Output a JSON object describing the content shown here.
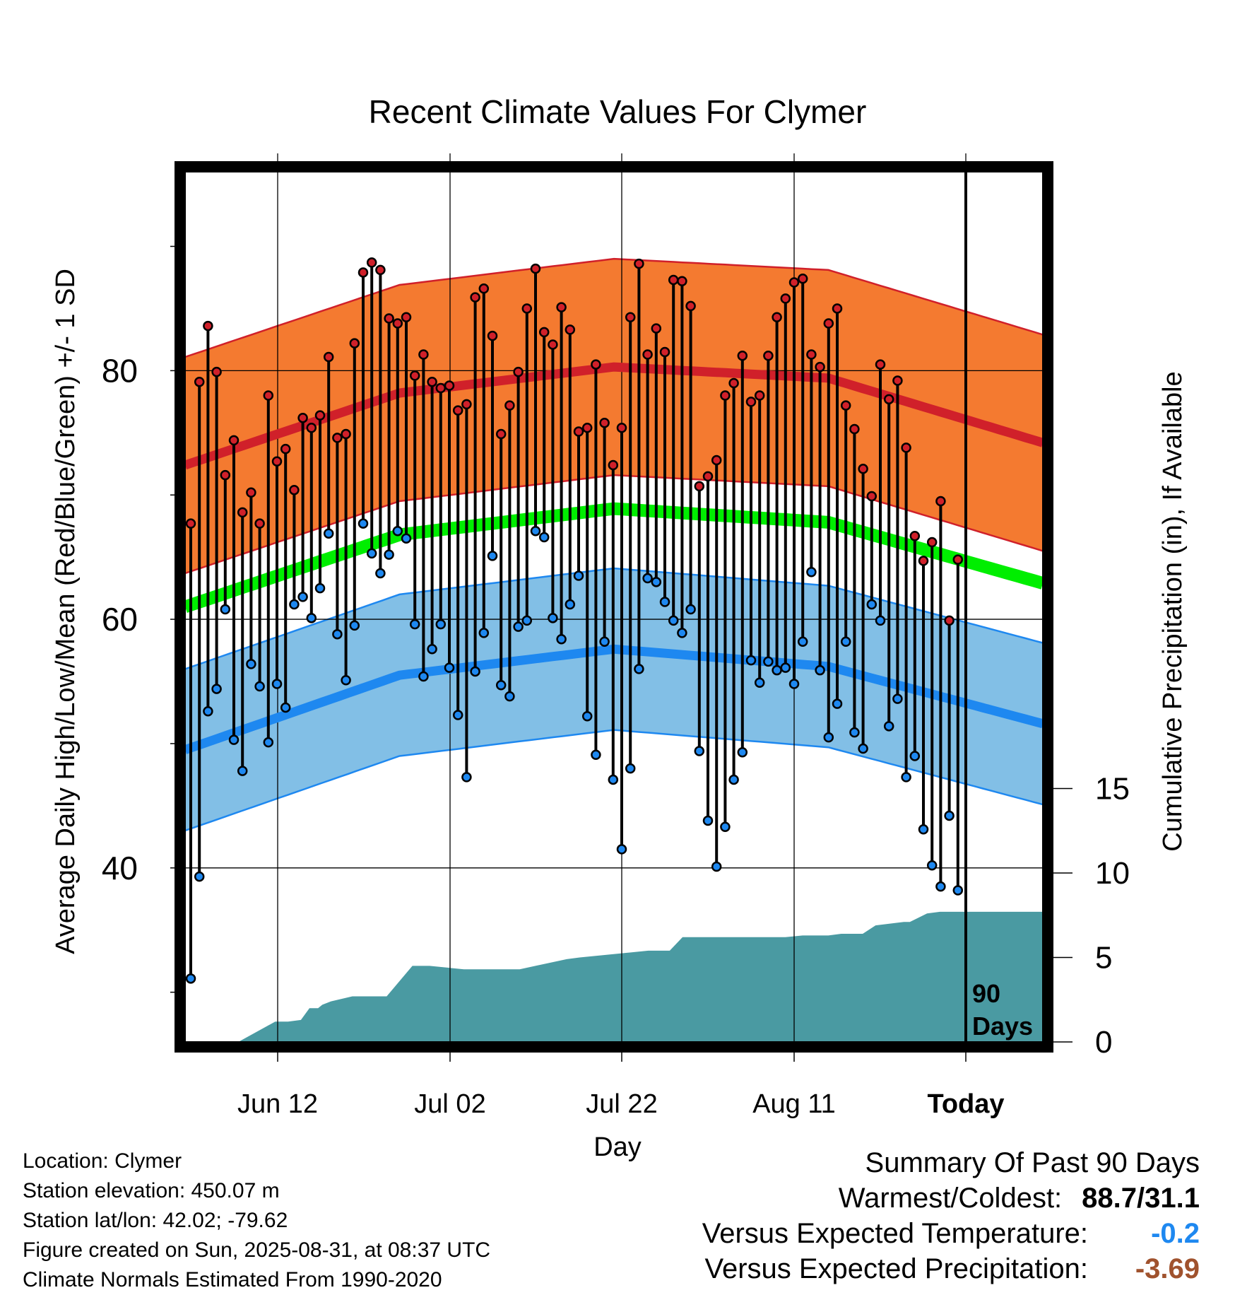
{
  "chart_data": {
    "type": "line",
    "title": "Recent Climate Values For Clymer",
    "xlabel": "Day",
    "ylabel": "Average Daily High/Low/Mean (Red/Blue/Green) +/- 1 SD",
    "y2label": "Cumulative Precipitation (in), If Available",
    "x_tick_labels": [
      "Jun 12",
      "Jul 02",
      "Jul 22",
      "Aug 11",
      "Today"
    ],
    "y_ticks": [
      40,
      60,
      80
    ],
    "y_ticks_minor": [
      30,
      50,
      70,
      90
    ],
    "ylim": [
      26,
      96
    ],
    "y2_ticks": [
      0,
      5,
      10,
      15
    ],
    "y2lim": [
      0,
      51.5
    ],
    "grid": true,
    "today_marker_label": "90 Days",
    "colors": {
      "high": "#d0202a",
      "high_band": "#f47a30",
      "low": "#1e88f0",
      "low_band": "#82bfe6",
      "mean": "#00ee00",
      "precip": "#4a9aa2",
      "frame": "#000000"
    },
    "series": [
      {
        "name": "Daily High",
        "values": [
          67.7,
          79.1,
          83.6,
          79.9,
          71.6,
          74.4,
          68.6,
          70.2,
          67.7,
          78.0,
          72.7,
          73.7,
          70.4,
          76.2,
          75.4,
          76.4,
          81.1,
          74.6,
          74.9,
          82.2,
          87.9,
          88.7,
          88.1,
          84.2,
          83.8,
          84.3,
          79.6,
          81.3,
          79.1,
          78.6,
          78.8,
          76.8,
          77.3,
          85.9,
          86.6,
          82.8,
          74.9,
          77.2,
          79.9,
          85.0,
          88.2,
          83.1,
          82.1,
          85.1,
          83.3,
          75.1,
          75.4,
          80.5,
          75.8,
          72.4,
          75.4,
          84.3,
          88.6,
          81.3,
          83.4,
          81.5,
          87.3,
          87.2,
          85.2,
          70.7,
          71.5,
          72.8,
          78.0,
          79.0,
          81.2,
          77.5,
          78.0,
          81.2,
          84.3,
          85.8,
          87.1,
          87.4,
          81.3,
          80.3,
          83.8,
          85.0,
          77.2,
          75.3,
          72.1,
          69.9,
          80.5,
          77.7,
          79.2,
          73.8,
          66.7,
          64.7,
          66.2,
          69.5,
          59.9,
          64.8
        ]
      },
      {
        "name": "Daily Low",
        "values": [
          31.1,
          39.3,
          52.6,
          54.4,
          60.8,
          50.3,
          47.8,
          56.4,
          54.6,
          50.1,
          54.8,
          52.9,
          61.2,
          61.8,
          60.1,
          62.5,
          66.9,
          58.8,
          55.1,
          59.5,
          67.7,
          65.3,
          63.7,
          65.2,
          67.1,
          66.5,
          59.6,
          55.4,
          57.6,
          59.6,
          56.1,
          52.3,
          47.3,
          55.8,
          58.9,
          65.1,
          54.7,
          53.8,
          59.4,
          59.9,
          67.1,
          66.6,
          60.1,
          58.4,
          61.2,
          63.5,
          52.2,
          49.1,
          58.2,
          47.1,
          41.5,
          48.0,
          56.0,
          63.3,
          63.0,
          61.4,
          59.9,
          58.9,
          60.8,
          49.4,
          43.8,
          40.1,
          43.3,
          47.1,
          49.3,
          56.7,
          54.9,
          56.6,
          55.9,
          56.1,
          54.8,
          58.2,
          63.8,
          55.9,
          50.5,
          53.2,
          58.2,
          50.9,
          49.6,
          61.2,
          59.9,
          51.4,
          53.6,
          47.3,
          49.0,
          43.1,
          40.2,
          38.5,
          44.2,
          38.2
        ]
      },
      {
        "name": "Normal High",
        "x_pos": [
          0,
          25,
          50,
          75,
          100
        ],
        "values": [
          72.4,
          78.2,
          80.3,
          79.4,
          74.2
        ],
        "sd": 8.7
      },
      {
        "name": "Normal Low",
        "x_pos": [
          0,
          25,
          50,
          75,
          100
        ],
        "values": [
          49.5,
          55.5,
          57.6,
          56.2,
          51.6
        ],
        "sd": 6.5
      },
      {
        "name": "Normal Mean",
        "x_pos": [
          0,
          25,
          50,
          75,
          100
        ],
        "values": [
          61.0,
          66.8,
          68.9,
          67.8,
          62.9
        ]
      },
      {
        "name": "Cumulative Precipitation",
        "axis": "y2",
        "x_pos": [
          0,
          6.2,
          10.5,
          11.5,
          12,
          13.5,
          14.5,
          15.5,
          16,
          17,
          19.5,
          20.5,
          22,
          23.5,
          26.5,
          28.5,
          32.5,
          39,
          44.5,
          46,
          54,
          56.5,
          58,
          60,
          64,
          70,
          72,
          75,
          76.5,
          79,
          80.5,
          83.8,
          84.5,
          86.5,
          88,
          88.8,
          100
        ],
        "values": [
          0,
          0,
          1.2,
          1.2,
          1.2,
          1.3,
          2.0,
          2.0,
          2.2,
          2.4,
          2.7,
          2.7,
          2.7,
          2.7,
          4.5,
          4.5,
          4.3,
          4.3,
          4.9,
          5.0,
          5.4,
          5.4,
          6.2,
          6.2,
          6.2,
          6.2,
          6.3,
          6.3,
          6.4,
          6.4,
          6.9,
          7.1,
          7.1,
          7.6,
          7.7,
          7.7,
          7.7
        ]
      }
    ],
    "precipitation": "cumulative"
  },
  "footer": {
    "location": "Location: Clymer",
    "elevation": "Station elevation: 450.07 m",
    "latlon": "Station lat/lon: 42.02; -79.62",
    "created": "Figure created on Sun, 2025-08-31, at 08:37 UTC",
    "normals": "Climate Normals Estimated From 1990-2020"
  },
  "summary": {
    "title": "Summary Of Past 90 Days",
    "warmest_label": "Warmest/Coldest:",
    "warmest_value": "88.7/31.1",
    "temp_label": "Versus Expected Temperature:",
    "temp_value": "-0.2",
    "temp_color": "#1e88f0",
    "precip_label": "Versus Expected Precipitation:",
    "precip_value": "-3.69",
    "precip_color": "#a0522d"
  }
}
